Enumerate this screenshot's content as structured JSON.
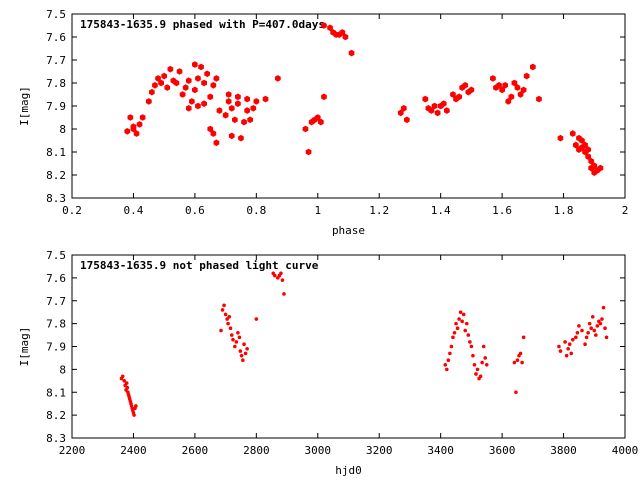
{
  "colors": {
    "marker": "#ff0000",
    "axis": "#000000"
  },
  "chart_data": [
    {
      "type": "scatter",
      "title": "175843-1635.9 phased with P=407.0days",
      "xlabel": "phase",
      "ylabel": "I[mag]",
      "xlim": [
        0.2,
        2.0
      ],
      "ylim": [
        7.5,
        8.3
      ],
      "y_inverted": true,
      "grid": false,
      "x_ticks": [
        "0.2",
        "0.4",
        "0.6",
        "0.8",
        "1",
        "1.2",
        "1.4",
        "1.6",
        "1.8",
        "2"
      ],
      "y_ticks": [
        "7.5",
        "7.6",
        "7.7",
        "7.8",
        "7.9",
        "8",
        "8.1",
        "8.2",
        "8.3"
      ],
      "marker": "filled-hexagon",
      "x": [
        0.38,
        0.39,
        0.4,
        0.4,
        0.41,
        0.42,
        0.43,
        0.45,
        0.46,
        0.47,
        0.48,
        0.49,
        0.5,
        0.51,
        0.52,
        0.53,
        0.54,
        0.55,
        0.56,
        0.57,
        0.58,
        0.58,
        0.59,
        0.6,
        0.6,
        0.61,
        0.61,
        0.62,
        0.63,
        0.63,
        0.64,
        0.65,
        0.65,
        0.66,
        0.66,
        0.67,
        0.67,
        0.68,
        0.7,
        0.71,
        0.71,
        0.72,
        0.72,
        0.73,
        0.74,
        0.74,
        0.75,
        0.76,
        0.77,
        0.77,
        0.78,
        0.79,
        0.8,
        0.83,
        0.87,
        0.96,
        0.97,
        0.98,
        0.99,
        1.0,
        1.01,
        1.02,
        1.02,
        1.04,
        1.05,
        1.06,
        1.07,
        1.08,
        1.09,
        1.11,
        1.27,
        1.28,
        1.29,
        1.35,
        1.36,
        1.37,
        1.38,
        1.39,
        1.4,
        1.41,
        1.42,
        1.44,
        1.45,
        1.46,
        1.47,
        1.48,
        1.49,
        1.5,
        1.57,
        1.58,
        1.59,
        1.6,
        1.61,
        1.62,
        1.63,
        1.64,
        1.65,
        1.66,
        1.67,
        1.68,
        1.7,
        1.72,
        1.79,
        1.83,
        1.84,
        1.85,
        1.85,
        1.86,
        1.86,
        1.87,
        1.87,
        1.88,
        1.88,
        1.89,
        1.89,
        1.9,
        1.9,
        1.91,
        1.92
      ],
      "y": [
        8.01,
        7.95,
        7.99,
        8.0,
        8.02,
        7.98,
        7.95,
        7.88,
        7.84,
        7.81,
        7.78,
        7.8,
        7.77,
        7.82,
        7.74,
        7.79,
        7.8,
        7.75,
        7.85,
        7.82,
        7.91,
        7.79,
        7.88,
        7.83,
        7.72,
        7.78,
        7.9,
        7.73,
        7.8,
        7.89,
        7.76,
        7.86,
        8.0,
        7.81,
        8.02,
        7.78,
        8.06,
        7.92,
        7.94,
        7.85,
        7.88,
        7.91,
        8.03,
        7.96,
        7.89,
        7.86,
        8.04,
        7.97,
        7.92,
        7.87,
        7.96,
        7.91,
        7.88,
        7.87,
        7.78,
        8.0,
        8.1,
        7.97,
        7.96,
        7.95,
        7.97,
        7.86,
        7.55,
        7.56,
        7.58,
        7.59,
        7.59,
        7.58,
        7.6,
        7.67,
        7.93,
        7.91,
        7.96,
        7.87,
        7.91,
        7.92,
        7.9,
        7.93,
        7.9,
        7.89,
        7.92,
        7.85,
        7.87,
        7.86,
        7.82,
        7.81,
        7.84,
        7.83,
        7.78,
        7.82,
        7.81,
        7.83,
        7.81,
        7.88,
        7.86,
        7.8,
        7.82,
        7.85,
        7.83,
        7.77,
        7.73,
        7.87,
        8.04,
        8.02,
        8.07,
        8.04,
        8.09,
        8.05,
        8.08,
        8.1,
        8.07,
        8.12,
        8.09,
        8.14,
        8.17,
        8.19,
        8.16,
        8.18,
        8.17
      ]
    },
    {
      "type": "scatter",
      "title": "175843-1635.9 not phased light curve",
      "xlabel": "hjd0",
      "ylabel": "I[mag]",
      "xlim": [
        2200,
        4000
      ],
      "ylim": [
        7.5,
        8.3
      ],
      "y_inverted": true,
      "grid": false,
      "x_ticks": [
        "2200",
        "2400",
        "2600",
        "2800",
        "3000",
        "3200",
        "3400",
        "3600",
        "3800",
        "4000"
      ],
      "y_ticks": [
        "7.5",
        "7.6",
        "7.7",
        "7.8",
        "7.9",
        "8",
        "8.1",
        "8.2",
        "8.3"
      ],
      "marker": "small-dot",
      "x": [
        2361,
        2365,
        2370,
        2373,
        2376,
        2378,
        2380,
        2382,
        2384,
        2386,
        2388,
        2390,
        2392,
        2394,
        2396,
        2398,
        2400,
        2402,
        2405,
        2408,
        2685,
        2690,
        2695,
        2700,
        2705,
        2708,
        2712,
        2716,
        2720,
        2724,
        2730,
        2735,
        2740,
        2745,
        2748,
        2752,
        2756,
        2760,
        2765,
        2770,
        2800,
        2855,
        2860,
        2870,
        2875,
        2880,
        2885,
        2890,
        3415,
        3420,
        3425,
        3430,
        3435,
        3440,
        3445,
        3450,
        3455,
        3460,
        3465,
        3470,
        3475,
        3480,
        3485,
        3490,
        3495,
        3500,
        3505,
        3510,
        3515,
        3520,
        3525,
        3530,
        3535,
        3540,
        3545,
        3550,
        3640,
        3645,
        3650,
        3655,
        3660,
        3665,
        3670,
        3785,
        3790,
        3805,
        3810,
        3815,
        3820,
        3825,
        3830,
        3840,
        3845,
        3850,
        3860,
        3870,
        3875,
        3880,
        3885,
        3890,
        3895,
        3900,
        3905,
        3910,
        3915,
        3920,
        3925,
        3930,
        3935,
        3940
      ],
      "y": [
        8.04,
        8.03,
        8.05,
        8.07,
        8.09,
        8.06,
        8.08,
        8.1,
        8.11,
        8.12,
        8.13,
        8.14,
        8.15,
        8.16,
        8.17,
        8.18,
        8.19,
        8.2,
        8.17,
        8.16,
        7.83,
        7.74,
        7.72,
        7.76,
        7.78,
        7.8,
        7.77,
        7.82,
        7.85,
        7.87,
        7.9,
        7.88,
        7.84,
        7.86,
        7.92,
        7.94,
        7.96,
        7.89,
        7.93,
        7.91,
        7.78,
        7.58,
        7.59,
        7.6,
        7.59,
        7.58,
        7.61,
        7.67,
        7.98,
        8.0,
        7.96,
        7.93,
        7.9,
        7.86,
        7.84,
        7.8,
        7.82,
        7.78,
        7.75,
        7.79,
        7.76,
        7.83,
        7.8,
        7.85,
        7.88,
        7.9,
        7.94,
        7.98,
        8.02,
        8.0,
        8.04,
        8.03,
        7.97,
        7.9,
        7.95,
        7.98,
        7.97,
        8.1,
        7.96,
        7.94,
        7.93,
        7.97,
        7.86,
        7.9,
        7.92,
        7.88,
        7.94,
        7.91,
        7.89,
        7.93,
        7.87,
        7.86,
        7.84,
        7.81,
        7.83,
        7.89,
        7.86,
        7.84,
        7.8,
        7.82,
        7.77,
        7.83,
        7.85,
        7.81,
        7.79,
        7.8,
        7.78,
        7.73,
        7.82,
        7.86
      ]
    }
  ]
}
